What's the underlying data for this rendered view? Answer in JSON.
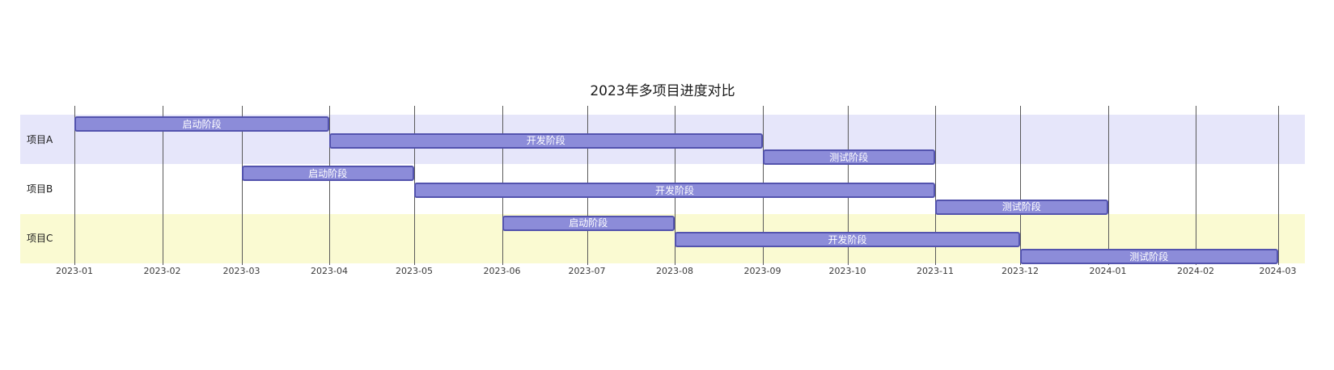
{
  "chart_data": {
    "type": "gantt",
    "title": "2023年多项目进度对比",
    "time_axis": {
      "ticks": [
        {
          "label": "2023-01",
          "date": "2023-01-01"
        },
        {
          "label": "2023-02",
          "date": "2023-02-01"
        },
        {
          "label": "2023-03",
          "date": "2023-03-01"
        },
        {
          "label": "2023-04",
          "date": "2023-04-01"
        },
        {
          "label": "2023-05",
          "date": "2023-05-01"
        },
        {
          "label": "2023-06",
          "date": "2023-06-01"
        },
        {
          "label": "2023-07",
          "date": "2023-07-01"
        },
        {
          "label": "2023-08",
          "date": "2023-08-01"
        },
        {
          "label": "2023-09",
          "date": "2023-09-01"
        },
        {
          "label": "2023-10",
          "date": "2023-10-01"
        },
        {
          "label": "2023-11",
          "date": "2023-11-01"
        },
        {
          "label": "2023-12",
          "date": "2023-12-01"
        },
        {
          "label": "2024-01",
          "date": "2024-01-01"
        },
        {
          "label": "2024-02",
          "date": "2024-02-01"
        },
        {
          "label": "2024-03",
          "date": "2024-03-01"
        }
      ],
      "grid": true
    },
    "projects": [
      {
        "name": "项目A",
        "row_background": "#E6E6FA",
        "phases": [
          {
            "label": "启动阶段",
            "start": "2023-01-01",
            "end": "2023-04-01"
          },
          {
            "label": "开发阶段",
            "start": "2023-04-01",
            "end": "2023-09-01"
          },
          {
            "label": "测试阶段",
            "start": "2023-09-01",
            "end": "2023-11-01"
          }
        ]
      },
      {
        "name": "项目B",
        "row_background": "#FFFFFF",
        "phases": [
          {
            "label": "启动阶段",
            "start": "2023-03-01",
            "end": "2023-05-01"
          },
          {
            "label": "开发阶段",
            "start": "2023-05-01",
            "end": "2023-11-01"
          },
          {
            "label": "测试阶段",
            "start": "2023-11-01",
            "end": "2024-01-01"
          }
        ]
      },
      {
        "name": "项目C",
        "row_background": "#FAFAD2",
        "phases": [
          {
            "label": "启动阶段",
            "start": "2023-06-01",
            "end": "2023-08-01"
          },
          {
            "label": "开发阶段",
            "start": "2023-08-01",
            "end": "2023-12-01"
          },
          {
            "label": "测试阶段",
            "start": "2023-12-01",
            "end": "2024-03-01"
          }
        ]
      }
    ],
    "colors": {
      "bar_fill": "#8C8CD9",
      "bar_border": "#5353AE",
      "bar_text": "#FFFFFF",
      "grid_line": "#5A5A5A",
      "tick_text": "#3A3A3A",
      "title_text": "#1A1A1A"
    }
  }
}
